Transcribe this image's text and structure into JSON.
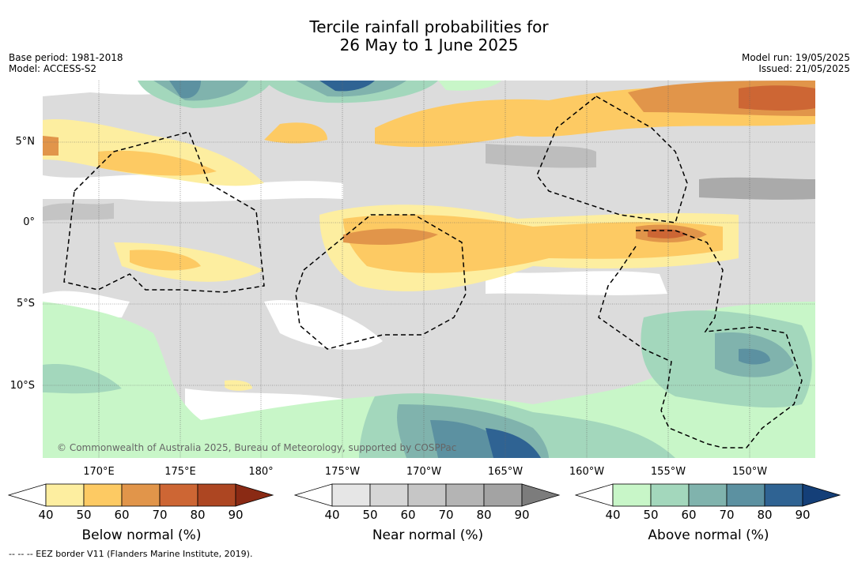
{
  "title_line1": "Tercile rainfall probabilities for",
  "title_line2": "26 May to 1 June 2025",
  "meta_left": [
    "Base period: 1981-2018",
    "Model: ACCESS-S2"
  ],
  "meta_right": [
    "Model run: 19/05/2025",
    "Issued: 21/05/2025"
  ],
  "lat_labels": [
    "5°N",
    "0°",
    "5°S",
    "10°S"
  ],
  "lon_labels": [
    "170°E",
    "175°E",
    "180°",
    "175°W",
    "170°W",
    "165°W",
    "160°W",
    "155°W",
    "150°W"
  ],
  "copyright": "© Commonwealth of Australia 2025, Bureau of Meteorology, supported by COSPPac",
  "colorbars": [
    {
      "title": "Below normal (%)",
      "ticks": [
        "40",
        "50",
        "60",
        "70",
        "80",
        "90"
      ],
      "colors": [
        "#ffffff",
        "#fdeea0",
        "#fdca63",
        "#e1954a",
        "#cd6634",
        "#ad4622",
        "#8a2a14"
      ]
    },
    {
      "title": "Near normal (%)",
      "ticks": [
        "40",
        "50",
        "60",
        "70",
        "80",
        "90"
      ],
      "colors": [
        "#ffffff",
        "#e6e6e6",
        "#d6d6d6",
        "#c6c6c6",
        "#b4b4b4",
        "#a3a3a3",
        "#7c7c7c"
      ]
    },
    {
      "title": "Above normal (%)",
      "ticks": [
        "40",
        "50",
        "60",
        "70",
        "80",
        "90"
      ],
      "colors": [
        "#ffffff",
        "#c8f6c8",
        "#a3d7bc",
        "#80b3ad",
        "#5c91a1",
        "#2f6393",
        "#143f78"
      ]
    }
  ],
  "footer": "--  --  -- EEZ border V11 (Flanders Marine Institute, 2019)."
}
